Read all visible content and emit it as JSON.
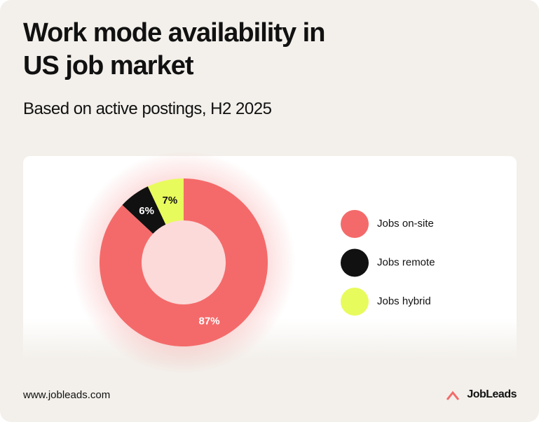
{
  "chart_data": {
    "type": "donut",
    "title": "Work mode availability in US job market",
    "subtitle": "Based on active postings, H2 2025",
    "categories": [
      "Jobs on-site",
      "Jobs remote",
      "Jobs hybrid"
    ],
    "values": [
      87,
      6,
      7
    ],
    "value_labels": [
      "87%",
      "6%",
      "7%"
    ],
    "colors": [
      "#f46a6a",
      "#111111",
      "#e8fb5c"
    ],
    "legend": "right"
  },
  "footer": {
    "url": "www.jobleads.com",
    "brand": "JobLeads"
  }
}
